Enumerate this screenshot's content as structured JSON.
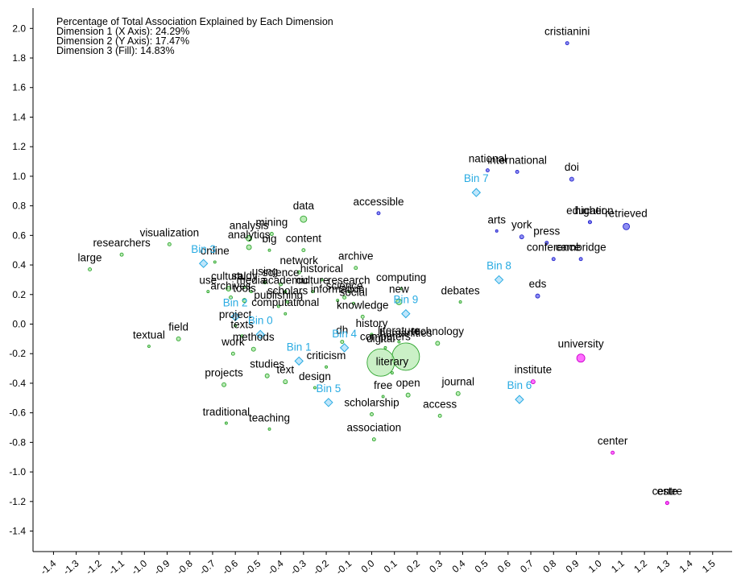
{
  "chart_data": {
    "type": "scatter",
    "annotations": [
      "Percentage of Total Association Explained by Each Dimension",
      "Dimension 1 (X Axis): 24.29%",
      "Dimension 2 (Y Axis): 17.47%",
      "Dimension 3 (Fill): 14.83%"
    ],
    "xlim": [
      -1.5,
      1.5
    ],
    "ylim": [
      -1.5,
      2.12
    ],
    "x_ticks": [
      -1.4,
      -1.3,
      -1.2,
      -1.1,
      -1.0,
      -0.9,
      -0.8,
      -0.7,
      -0.6,
      -0.5,
      -0.4,
      -0.3,
      -0.2,
      -0.1,
      0.0,
      0.1,
      0.2,
      0.3,
      0.4,
      0.5,
      0.6,
      0.7,
      0.8,
      0.9,
      1.0,
      1.1,
      1.2,
      1.3,
      1.4,
      1.5
    ],
    "x_tick_labels": [
      "-1.4",
      "-1.3",
      "-1.2",
      "-1.1",
      "-1.0",
      "-0.9",
      "-0.8",
      "-0.7",
      "-0.6",
      "-0.5",
      "-0.4",
      "-0.3",
      "-0.2",
      "-0.1",
      "0.0",
      "0.1",
      "0.2",
      "0.3",
      "0.4",
      "0.5",
      "0.6",
      "0.7",
      "0.8",
      "0.9",
      "1.0",
      "1.1",
      "1.2",
      "1.3",
      "1.4",
      "1.5"
    ],
    "y_ticks": [
      2.0,
      1.8,
      1.6,
      1.4,
      1.2,
      1.0,
      0.8,
      0.6,
      0.4,
      0.2,
      0.0,
      -0.2,
      -0.4,
      -0.6,
      -0.8,
      -1.0,
      -1.2,
      -1.4
    ],
    "y_tick_labels": [
      "2.0",
      "1.8",
      "1.6",
      "1.4",
      "1.2",
      "1.0",
      "0.8",
      "0.6",
      "0.4",
      "0.2",
      "0.0",
      "-0.2",
      "-0.4",
      "-0.6",
      "-0.8",
      "-1.0",
      "-1.2",
      "-1.4"
    ],
    "grid": false,
    "colors": {
      "green_fill": "#aee8a8",
      "green_stroke": "#2fa52f",
      "blue_fill": "#7a7af0",
      "blue_stroke": "#2222cc",
      "magenta_fill": "#ff55ff",
      "magenta_stroke": "#cc00cc",
      "bin_fill": "#bfe6fb",
      "bin_stroke": "#29abe2",
      "bin_text": "#29abe2"
    },
    "words": [
      {
        "label": "cristianini",
        "x": 0.86,
        "y": 1.9,
        "size": 2,
        "color": "blue"
      },
      {
        "label": "national",
        "x": 0.51,
        "y": 1.04,
        "size": 2,
        "color": "blue"
      },
      {
        "label": "international",
        "x": 0.64,
        "y": 1.03,
        "size": 2,
        "color": "blue"
      },
      {
        "label": "doi",
        "x": 0.88,
        "y": 0.98,
        "size": 2.5,
        "color": "blue"
      },
      {
        "label": "education",
        "x": 0.96,
        "y": 0.69,
        "size": 2,
        "color": "blue"
      },
      {
        "label": "higher",
        "x": 0.96,
        "y": 0.69,
        "size": 2,
        "color": "blue"
      },
      {
        "label": "retrieved",
        "x": 1.12,
        "y": 0.66,
        "size": 4,
        "color": "blue"
      },
      {
        "label": "arts",
        "x": 0.55,
        "y": 0.63,
        "size": 1.5,
        "color": "blue"
      },
      {
        "label": "york",
        "x": 0.66,
        "y": 0.59,
        "size": 2.5,
        "color": "blue"
      },
      {
        "label": "press",
        "x": 0.77,
        "y": 0.55,
        "size": 2,
        "color": "blue"
      },
      {
        "label": "conference",
        "x": 0.8,
        "y": 0.44,
        "size": 2,
        "color": "blue"
      },
      {
        "label": "cambridge",
        "x": 0.92,
        "y": 0.44,
        "size": 2,
        "color": "blue"
      },
      {
        "label": "eds",
        "x": 0.73,
        "y": 0.19,
        "size": 2.5,
        "color": "blue"
      },
      {
        "label": "accessible",
        "x": 0.03,
        "y": 0.75,
        "size": 2,
        "color": "blue"
      },
      {
        "label": "university",
        "x": 0.92,
        "y": -0.23,
        "size": 5,
        "color": "magenta"
      },
      {
        "label": "institute",
        "x": 0.71,
        "y": -0.39,
        "size": 2.5,
        "color": "magenta"
      },
      {
        "label": "center",
        "x": 1.06,
        "y": -0.87,
        "size": 2,
        "color": "magenta"
      },
      {
        "label": "centre",
        "x": 1.3,
        "y": -1.21,
        "size": 2,
        "color": "magenta"
      },
      {
        "label": "este",
        "x": 1.3,
        "y": -1.21,
        "size": 2,
        "color": "magenta"
      },
      {
        "label": "data",
        "x": -0.3,
        "y": 0.71,
        "size": 4,
        "color": "green"
      },
      {
        "label": "mining",
        "x": -0.44,
        "y": 0.61,
        "size": 2,
        "color": "green"
      },
      {
        "label": "analysis",
        "x": -0.54,
        "y": 0.58,
        "size": 3.5,
        "color": "green"
      },
      {
        "label": "analytics",
        "x": -0.54,
        "y": 0.52,
        "size": 3,
        "color": "green"
      },
      {
        "label": "big",
        "x": -0.45,
        "y": 0.5,
        "size": 1.5,
        "color": "green"
      },
      {
        "label": "content",
        "x": -0.3,
        "y": 0.5,
        "size": 2,
        "color": "green"
      },
      {
        "label": "visualization",
        "x": -0.89,
        "y": 0.54,
        "size": 2,
        "color": "green"
      },
      {
        "label": "researchers",
        "x": -1.1,
        "y": 0.47,
        "size": 2,
        "color": "green"
      },
      {
        "label": "large",
        "x": -1.24,
        "y": 0.37,
        "size": 2,
        "color": "green"
      },
      {
        "label": "online",
        "x": -0.69,
        "y": 0.42,
        "size": 1.5,
        "color": "green"
      },
      {
        "label": "archive",
        "x": -0.07,
        "y": 0.38,
        "size": 2,
        "color": "green"
      },
      {
        "label": "network",
        "x": -0.32,
        "y": 0.35,
        "size": 2,
        "color": "green"
      },
      {
        "label": "historical",
        "x": -0.22,
        "y": 0.3,
        "size": 1.5,
        "color": "green"
      },
      {
        "label": "cultural",
        "x": -0.63,
        "y": 0.24,
        "size": 3,
        "color": "green"
      },
      {
        "label": "study",
        "x": -0.56,
        "y": 0.25,
        "size": 1.5,
        "color": "green"
      },
      {
        "label": "using",
        "x": -0.47,
        "y": 0.28,
        "size": 1.5,
        "color": "green"
      },
      {
        "label": "science",
        "x": -0.4,
        "y": 0.27,
        "size": 2,
        "color": "green"
      },
      {
        "label": "media",
        "x": -0.53,
        "y": 0.22,
        "size": 1.5,
        "color": "green"
      },
      {
        "label": "academic",
        "x": -0.38,
        "y": 0.22,
        "size": 1.5,
        "color": "green"
      },
      {
        "label": "culture",
        "x": -0.26,
        "y": 0.22,
        "size": 1.5,
        "color": "green"
      },
      {
        "label": "research",
        "x": -0.1,
        "y": 0.22,
        "size": 1.5,
        "color": "green"
      },
      {
        "label": "use",
        "x": -0.72,
        "y": 0.22,
        "size": 1.5,
        "color": "green"
      },
      {
        "label": "archives",
        "x": -0.62,
        "y": 0.18,
        "size": 2,
        "color": "green"
      },
      {
        "label": "science",
        "x": -0.12,
        "y": 0.18,
        "size": 2,
        "color": "green"
      },
      {
        "label": "computing",
        "x": 0.13,
        "y": 0.24,
        "size": 1.5,
        "color": "green"
      },
      {
        "label": "new",
        "x": 0.12,
        "y": 0.15,
        "size": 3.5,
        "color": "green"
      },
      {
        "label": "information",
        "x": -0.15,
        "y": 0.16,
        "size": 1.5,
        "color": "green"
      },
      {
        "label": "tools",
        "x": -0.56,
        "y": 0.16,
        "size": 2.5,
        "color": "green"
      },
      {
        "label": "scholars",
        "x": -0.37,
        "y": 0.15,
        "size": 1.5,
        "color": "green"
      },
      {
        "label": "publishing",
        "x": -0.41,
        "y": 0.12,
        "size": 1.5,
        "color": "green"
      },
      {
        "label": "social",
        "x": -0.08,
        "y": 0.14,
        "size": 1.5,
        "color": "green"
      },
      {
        "label": "knowledge",
        "x": -0.04,
        "y": 0.05,
        "size": 2,
        "color": "green"
      },
      {
        "label": "computational",
        "x": -0.38,
        "y": 0.07,
        "size": 1.5,
        "color": "green"
      },
      {
        "label": "debates",
        "x": 0.39,
        "y": 0.15,
        "size": 1.5,
        "color": "green"
      },
      {
        "label": "textual",
        "x": -0.98,
        "y": -0.15,
        "size": 1.5,
        "color": "green"
      },
      {
        "label": "field",
        "x": -0.85,
        "y": -0.1,
        "size": 2.5,
        "color": "green"
      },
      {
        "label": "project",
        "x": -0.6,
        "y": -0.01,
        "size": 1.5,
        "color": "green"
      },
      {
        "label": "texts",
        "x": -0.57,
        "y": -0.08,
        "size": 1.5,
        "color": "green"
      },
      {
        "label": "methods",
        "x": -0.52,
        "y": -0.17,
        "size": 2.5,
        "color": "green"
      },
      {
        "label": "work",
        "x": -0.61,
        "y": -0.2,
        "size": 2,
        "color": "green"
      },
      {
        "label": "dh",
        "x": -0.13,
        "y": -0.12,
        "size": 2,
        "color": "green"
      },
      {
        "label": "history",
        "x": 0.0,
        "y": -0.07,
        "size": 1.5,
        "color": "green"
      },
      {
        "label": "computers",
        "x": 0.06,
        "y": -0.16,
        "size": 1.5,
        "color": "green"
      },
      {
        "label": "literature",
        "x": 0.12,
        "y": -0.12,
        "size": 1.5,
        "color": "green"
      },
      {
        "label": "humanities",
        "x": 0.15,
        "y": -0.22,
        "size": 17,
        "color": "green"
      },
      {
        "label": "technology",
        "x": 0.29,
        "y": -0.13,
        "size": 2.5,
        "color": "green"
      },
      {
        "label": "criticism",
        "x": -0.2,
        "y": -0.29,
        "size": 1.5,
        "color": "green"
      },
      {
        "label": "digital",
        "x": 0.04,
        "y": -0.26,
        "size": 17,
        "color": "green"
      },
      {
        "label": "literary",
        "x": 0.09,
        "y": -0.33,
        "size": 1.5,
        "color": "green"
      },
      {
        "label": "studies",
        "x": -0.46,
        "y": -0.35,
        "size": 2.5,
        "color": "green"
      },
      {
        "label": "projects",
        "x": -0.65,
        "y": -0.41,
        "size": 2.5,
        "color": "green"
      },
      {
        "label": "text",
        "x": -0.38,
        "y": -0.39,
        "size": 2.5,
        "color": "green"
      },
      {
        "label": "design",
        "x": -0.25,
        "y": -0.43,
        "size": 1.5,
        "color": "green"
      },
      {
        "label": "free",
        "x": 0.05,
        "y": -0.49,
        "size": 1.5,
        "color": "green"
      },
      {
        "label": "open",
        "x": 0.16,
        "y": -0.48,
        "size": 2.5,
        "color": "green"
      },
      {
        "label": "journal",
        "x": 0.38,
        "y": -0.47,
        "size": 2.5,
        "color": "green"
      },
      {
        "label": "scholarship",
        "x": 0.0,
        "y": -0.61,
        "size": 2,
        "color": "green"
      },
      {
        "label": "access",
        "x": 0.3,
        "y": -0.62,
        "size": 2,
        "color": "green"
      },
      {
        "label": "traditional",
        "x": -0.64,
        "y": -0.67,
        "size": 1.5,
        "color": "green"
      },
      {
        "label": "teaching",
        "x": -0.45,
        "y": -0.71,
        "size": 1.5,
        "color": "green"
      },
      {
        "label": "association",
        "x": 0.01,
        "y": -0.78,
        "size": 2,
        "color": "green"
      }
    ],
    "bins": [
      {
        "label": "Bin 7",
        "x": 0.46,
        "y": 0.89
      },
      {
        "label": "Bin 3",
        "x": -0.74,
        "y": 0.41
      },
      {
        "label": "Bin 8",
        "x": 0.56,
        "y": 0.3
      },
      {
        "label": "Bin 2",
        "x": -0.6,
        "y": 0.05
      },
      {
        "label": "Bin 9",
        "x": 0.15,
        "y": 0.07
      },
      {
        "label": "Bin 0",
        "x": -0.49,
        "y": -0.07
      },
      {
        "label": "Bin 4",
        "x": -0.12,
        "y": -0.16
      },
      {
        "label": "Bin 1",
        "x": -0.32,
        "y": -0.25
      },
      {
        "label": "Bin 5",
        "x": -0.19,
        "y": -0.53
      },
      {
        "label": "Bin 6",
        "x": 0.65,
        "y": -0.51
      }
    ]
  }
}
